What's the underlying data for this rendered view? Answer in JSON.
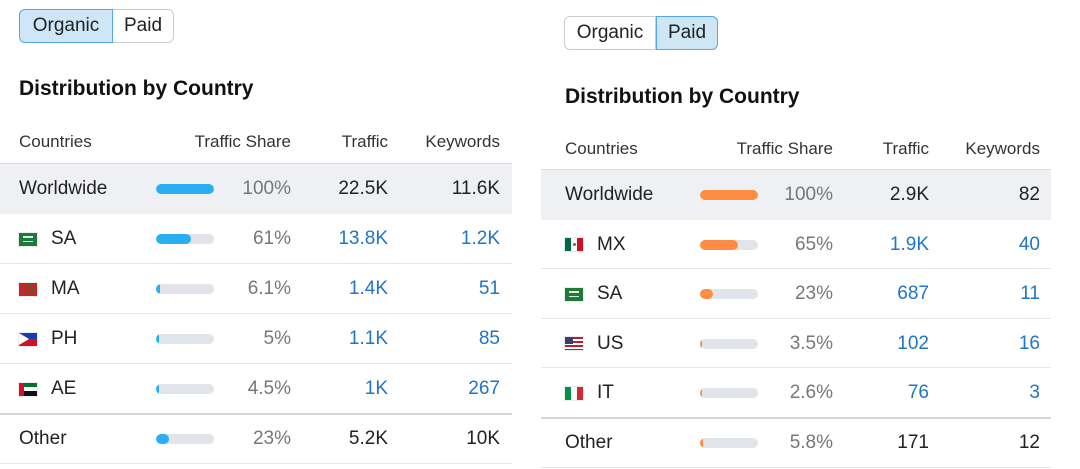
{
  "colors": {
    "organic_bar": "#29aef2",
    "paid_bar": "#ff8c43",
    "link": "#1f75c6",
    "bar_track": "#e1e5ea",
    "active_toggle_bg": "#cfe6f7"
  },
  "panels": [
    {
      "toggle": {
        "options": [
          "Organic",
          "Paid"
        ],
        "active": "Organic"
      },
      "title": "Distribution by Country",
      "columns": [
        "Countries",
        "Traffic Share",
        "Traffic",
        "Keywords"
      ],
      "rows": [
        {
          "country": "Worldwide",
          "flag": "",
          "share": "100%",
          "share_value": 1.0,
          "traffic": "22.5K",
          "keywords": "11.6K",
          "type": "worldwide"
        },
        {
          "country": "SA",
          "flag": "saudi-arabia-flag-icon",
          "share": "61%",
          "share_value": 0.61,
          "traffic": "13.8K",
          "keywords": "1.2K",
          "type": "country"
        },
        {
          "country": "MA",
          "flag": "morocco-flag-icon",
          "share": "6.1%",
          "share_value": 0.061,
          "traffic": "1.4K",
          "keywords": "51",
          "type": "country"
        },
        {
          "country": "PH",
          "flag": "philippines-flag-icon",
          "share": "5%",
          "share_value": 0.05,
          "traffic": "1.1K",
          "keywords": "85",
          "type": "country"
        },
        {
          "country": "AE",
          "flag": "uae-flag-icon",
          "share": "4.5%",
          "share_value": 0.045,
          "traffic": "1K",
          "keywords": "267",
          "type": "country"
        },
        {
          "country": "Other",
          "flag": "",
          "share": "23%",
          "share_value": 0.23,
          "traffic": "5.2K",
          "keywords": "10K",
          "type": "other"
        }
      ]
    },
    {
      "toggle": {
        "options": [
          "Organic",
          "Paid"
        ],
        "active": "Paid"
      },
      "title": "Distribution by Country",
      "columns": [
        "Countries",
        "Traffic Share",
        "Traffic",
        "Keywords"
      ],
      "rows": [
        {
          "country": "Worldwide",
          "flag": "",
          "share": "100%",
          "share_value": 1.0,
          "traffic": "2.9K",
          "keywords": "82",
          "type": "worldwide"
        },
        {
          "country": "MX",
          "flag": "mexico-flag-icon",
          "share": "65%",
          "share_value": 0.65,
          "traffic": "1.9K",
          "keywords": "40",
          "type": "country"
        },
        {
          "country": "SA",
          "flag": "saudi-arabia-flag-icon",
          "share": "23%",
          "share_value": 0.23,
          "traffic": "687",
          "keywords": "11",
          "type": "country"
        },
        {
          "country": "US",
          "flag": "usa-flag-icon",
          "share": "3.5%",
          "share_value": 0.035,
          "traffic": "102",
          "keywords": "16",
          "type": "country"
        },
        {
          "country": "IT",
          "flag": "italy-flag-icon",
          "share": "2.6%",
          "share_value": 0.026,
          "traffic": "76",
          "keywords": "3",
          "type": "country"
        },
        {
          "country": "Other",
          "flag": "",
          "share": "5.8%",
          "share_value": 0.058,
          "traffic": "171",
          "keywords": "12",
          "type": "other"
        }
      ]
    }
  ]
}
